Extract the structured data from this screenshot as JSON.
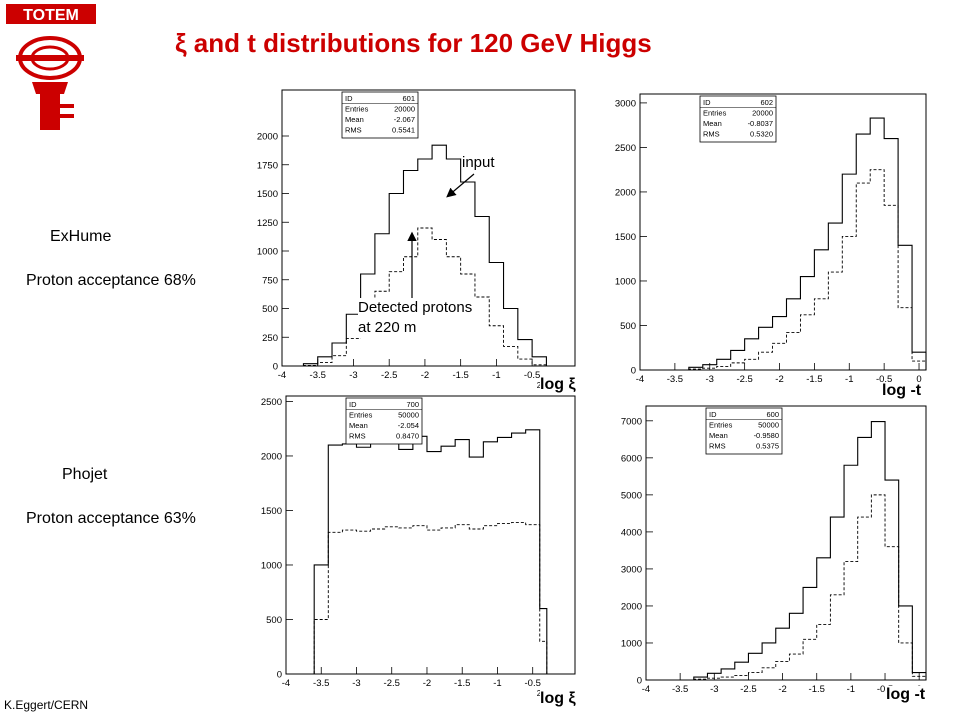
{
  "title": "ξ and t distributions for 120 GeV Higgs",
  "logo_text": "TOTEM",
  "footer": "K.Eggert/CERN",
  "labels": {
    "exhume": "ExHume",
    "exhume_acc": "Proton acceptance 68%",
    "phojet": "Phojet",
    "phojet_acc": "Proton acceptance 63%",
    "input": "input",
    "detected_1": "Detected protons",
    "detected_2": "at 220 m"
  },
  "colors": {
    "title": "#cc0000",
    "logo": "#cc0000"
  },
  "chart_data": [
    {
      "id": "exhume-xi",
      "type": "step",
      "xlabel": "log ξ",
      "axis_suffix": "220 m",
      "xlim": [
        -4,
        0.1
      ],
      "ylim": [
        0,
        2400
      ],
      "xticks": [
        -4,
        -3.5,
        -3,
        -2.5,
        -2,
        -1.5,
        -1,
        -0.5
      ],
      "yticks": [
        0,
        250,
        500,
        750,
        1000,
        1250,
        1500,
        1750,
        2000
      ],
      "stats": [
        [
          "ID",
          "601"
        ],
        [
          "Entries",
          "20000"
        ],
        [
          "Mean",
          "-2.067"
        ],
        [
          "RMS",
          "0.5541"
        ]
      ],
      "bin_edges": [
        -3.7,
        -3.5,
        -3.3,
        -3.1,
        -2.9,
        -2.7,
        -2.5,
        -2.3,
        -2.1,
        -1.9,
        -1.7,
        -1.5,
        -1.3,
        -1.1,
        -0.9,
        -0.7,
        -0.5,
        -0.3
      ],
      "series": [
        {
          "name": "input",
          "style": "solid",
          "values": [
            20,
            80,
            200,
            450,
            800,
            1150,
            1500,
            1700,
            1800,
            1920,
            1800,
            1600,
            1300,
            900,
            500,
            230,
            80
          ]
        },
        {
          "name": "Detected protons at 220 m",
          "style": "dashed",
          "values": [
            5,
            30,
            90,
            240,
            450,
            650,
            820,
            950,
            1200,
            1100,
            950,
            800,
            600,
            350,
            170,
            60,
            10
          ]
        }
      ]
    },
    {
      "id": "exhume-t",
      "type": "step",
      "xlabel": "log -t",
      "axis_suffix": "220 m",
      "xlim": [
        -4,
        0.1
      ],
      "ylim": [
        0,
        3100
      ],
      "xticks": [
        -4,
        -3.5,
        -3,
        -2.5,
        -2,
        -1.5,
        -1,
        -0.5,
        0
      ],
      "yticks": [
        0,
        500,
        1000,
        1500,
        2000,
        2500,
        3000
      ],
      "stats": [
        [
          "ID",
          "602"
        ],
        [
          "Entries",
          "20000"
        ],
        [
          "Mean",
          "-0.8037"
        ],
        [
          "RMS",
          "0.5320"
        ]
      ],
      "bin_edges": [
        -3.3,
        -3.1,
        -2.9,
        -2.7,
        -2.5,
        -2.3,
        -2.1,
        -1.9,
        -1.7,
        -1.5,
        -1.3,
        -1.1,
        -0.9,
        -0.7,
        -0.5,
        -0.3,
        -0.1,
        0.1
      ],
      "series": [
        {
          "name": "input",
          "style": "solid",
          "values": [
            30,
            60,
            120,
            220,
            350,
            480,
            600,
            800,
            1050,
            1350,
            1650,
            2200,
            2650,
            2830,
            2600,
            1400,
            200
          ]
        },
        {
          "name": "Detected protons",
          "style": "dashed",
          "values": [
            10,
            20,
            40,
            80,
            120,
            200,
            300,
            420,
            620,
            800,
            1100,
            1500,
            2100,
            2250,
            1850,
            700,
            100
          ]
        }
      ]
    },
    {
      "id": "phojet-xi",
      "type": "step",
      "xlabel": "log ξ",
      "axis_suffix": "220 m",
      "xlim": [
        -4,
        0.1
      ],
      "ylim": [
        0,
        2550
      ],
      "xticks": [
        -4,
        -3.5,
        -3,
        -2.5,
        -2,
        -1.5,
        -1,
        -0.5
      ],
      "yticks": [
        0,
        500,
        1000,
        1500,
        2000,
        2500
      ],
      "stats": [
        [
          "ID",
          "700"
        ],
        [
          "Entries",
          "50000"
        ],
        [
          "Mean",
          "-2.054"
        ],
        [
          "RMS",
          "0.8470"
        ]
      ],
      "bin_edges": [
        -3.6,
        -3.4,
        -3.2,
        -3.0,
        -2.8,
        -2.6,
        -2.4,
        -2.2,
        -2.0,
        -1.8,
        -1.6,
        -1.4,
        -1.2,
        -1.0,
        -0.8,
        -0.6,
        -0.4,
        -0.3
      ],
      "series": [
        {
          "name": "input",
          "style": "solid",
          "values": [
            1000,
            2100,
            2110,
            2080,
            2120,
            2150,
            2060,
            2180,
            2040,
            2090,
            2150,
            1990,
            2130,
            2170,
            2210,
            2240,
            600
          ]
        },
        {
          "name": "Detected protons",
          "style": "dashed",
          "values": [
            500,
            1300,
            1320,
            1310,
            1330,
            1350,
            1340,
            1360,
            1320,
            1340,
            1370,
            1330,
            1360,
            1380,
            1390,
            1370,
            300
          ]
        }
      ]
    },
    {
      "id": "phojet-t",
      "type": "step",
      "xlabel": "log -t",
      "axis_suffix": "220 m",
      "xlim": [
        -4,
        0.1
      ],
      "ylim": [
        0,
        7400
      ],
      "xticks": [
        -4,
        -3.5,
        -3,
        -2.5,
        -2,
        -1.5,
        -1,
        -0.5,
        0
      ],
      "yticks": [
        0,
        1000,
        2000,
        3000,
        4000,
        5000,
        6000,
        7000
      ],
      "stats": [
        [
          "ID",
          "600"
        ],
        [
          "Entries",
          "50000"
        ],
        [
          "Mean",
          "-0.9580"
        ],
        [
          "RMS",
          "0.5375"
        ]
      ],
      "bin_edges": [
        -3.3,
        -3.1,
        -2.9,
        -2.7,
        -2.5,
        -2.3,
        -2.1,
        -1.9,
        -1.7,
        -1.5,
        -1.3,
        -1.1,
        -0.9,
        -0.7,
        -0.5,
        -0.3,
        -0.1,
        0.1
      ],
      "series": [
        {
          "name": "input",
          "style": "solid",
          "values": [
            80,
            180,
            300,
            480,
            720,
            1000,
            1400,
            1800,
            2500,
            3300,
            4400,
            5800,
            6550,
            6980,
            5400,
            2000,
            200
          ]
        },
        {
          "name": "Detected protons",
          "style": "dashed",
          "values": [
            20,
            50,
            80,
            120,
            200,
            330,
            500,
            700,
            1100,
            1500,
            2300,
            3200,
            4400,
            5000,
            3600,
            1000,
            100
          ]
        }
      ]
    }
  ]
}
